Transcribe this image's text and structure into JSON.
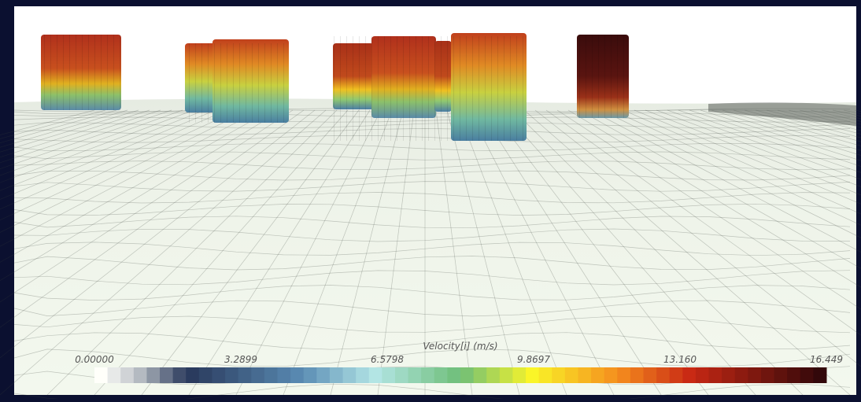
{
  "colorbar": {
    "title": "Velocity[i] (m/s)",
    "ticks": [
      "0.00000",
      "3.2899",
      "6.5798",
      "9.8697",
      "13.160",
      "16.449"
    ]
  }
}
